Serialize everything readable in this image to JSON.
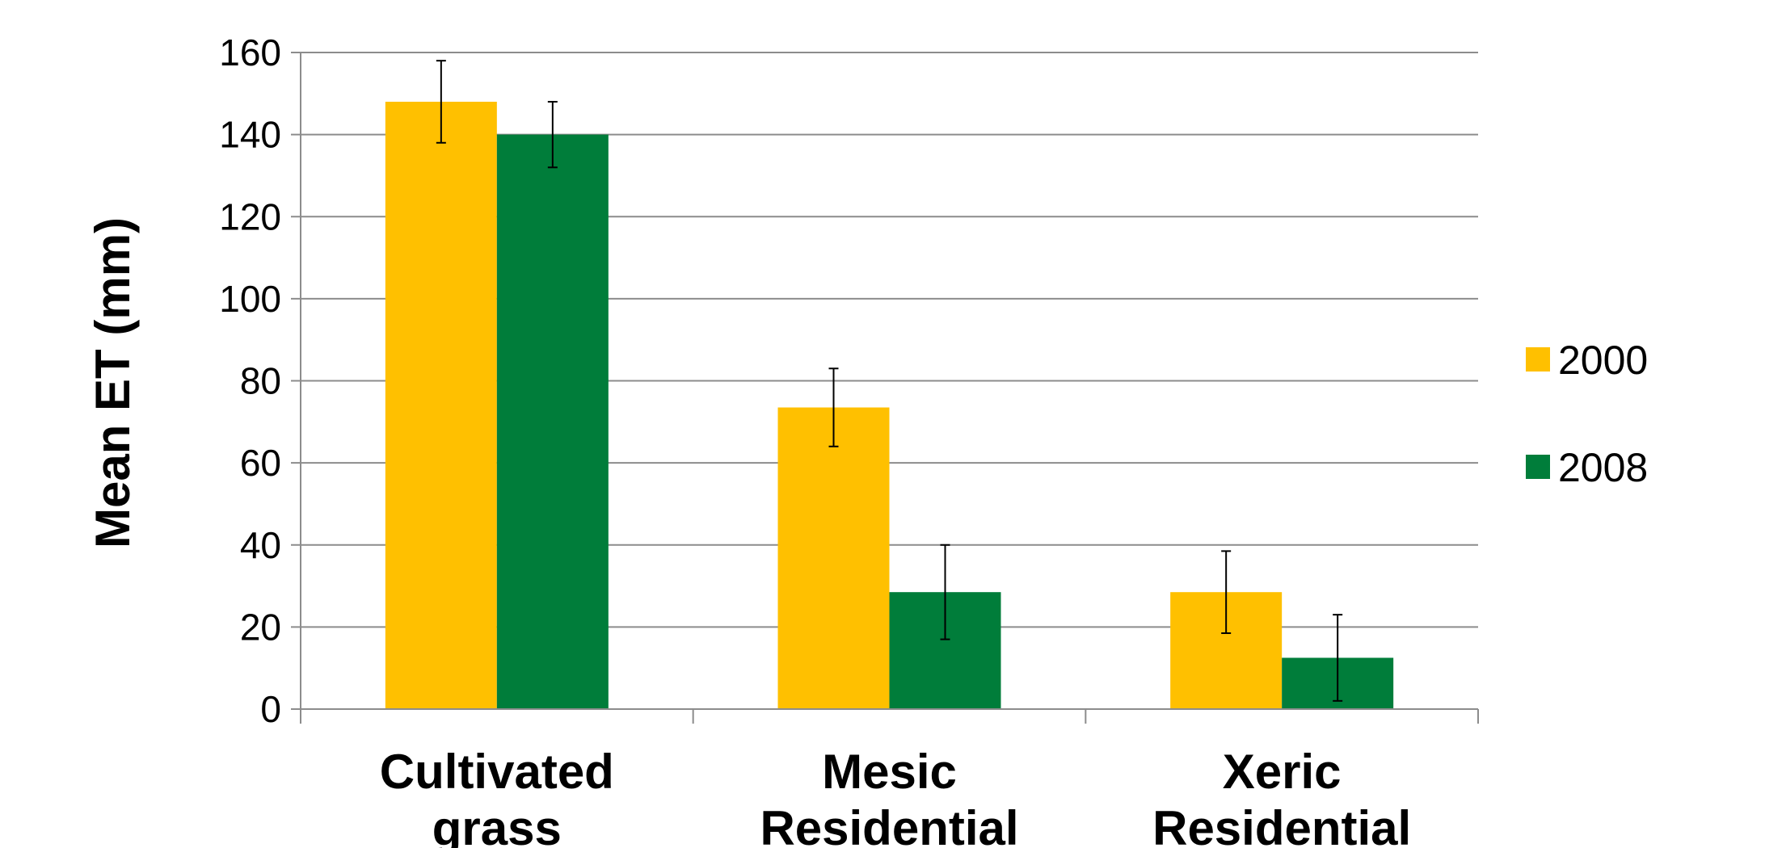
{
  "chart_data": {
    "type": "bar",
    "ylabel": "Mean ET (mm)",
    "xlabel": "",
    "ylim": [
      0,
      160
    ],
    "yticks": [
      0,
      20,
      40,
      60,
      80,
      100,
      120,
      140,
      160
    ],
    "grid": true,
    "legend_position": "right",
    "categories": [
      [
        "Cultivated",
        "grass"
      ],
      [
        "Mesic",
        "Residential"
      ],
      [
        "Xeric",
        "Residential"
      ]
    ],
    "series": [
      {
        "name": "2000",
        "color": "#FFC000",
        "values": [
          148,
          73.5,
          28.5
        ],
        "error": [
          10,
          9.5,
          10
        ]
      },
      {
        "name": "2008",
        "color": "#007D3A",
        "values": [
          140,
          28.5,
          12.5
        ],
        "error": [
          8,
          11.5,
          10.5
        ]
      }
    ]
  }
}
